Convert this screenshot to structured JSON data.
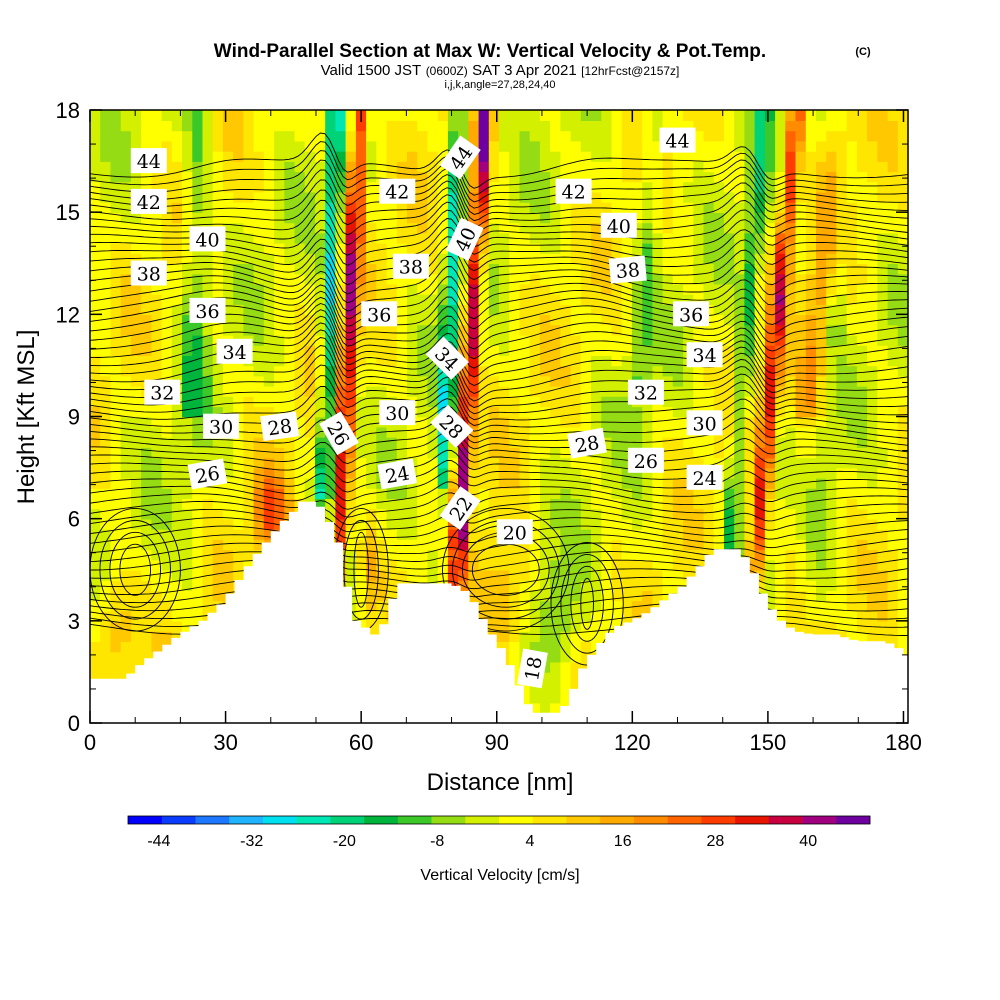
{
  "chart_data": {
    "type": "heatmap",
    "title": "Wind-Parallel Section at Max W: Vertical Velocity & Pot.Temp.",
    "title_mark": "(C)",
    "subtitle_parts": [
      "Valid 1500 JST",
      "(0600Z)",
      "SAT 3 Apr 2021",
      "[12hrFcst@2157z]"
    ],
    "subtitle3": "i,j,k,angle=27,28,24,40",
    "xlabel": "Distance [nm]",
    "ylabel": "Height [Kft MSL]",
    "xlim": [
      0,
      181
    ],
    "ylim": [
      0,
      18
    ],
    "xticks": [
      0,
      30,
      60,
      90,
      120,
      150,
      180
    ],
    "yticks": [
      0,
      3,
      6,
      9,
      12,
      15,
      18
    ],
    "colorbar": {
      "label": "Vertical Velocity [cm/s]",
      "range": [
        -48,
        48
      ],
      "ticks": [
        -44,
        -32,
        -20,
        -8,
        4,
        16,
        28,
        40
      ],
      "colors": [
        "#0000ff",
        "#0a3cff",
        "#1e78ff",
        "#20b4ff",
        "#00e0f0",
        "#00e6b4",
        "#00d278",
        "#00b43c",
        "#3cc828",
        "#96dc14",
        "#d2f000",
        "#ffff00",
        "#ffe600",
        "#ffc800",
        "#ffaa00",
        "#ff8c00",
        "#ff6400",
        "#ff3c00",
        "#e61400",
        "#c80040",
        "#a00080",
        "#6e00a0"
      ]
    },
    "terrain": [
      [
        0,
        1.3
      ],
      [
        8,
        1.3
      ],
      [
        10,
        1.6
      ],
      [
        13,
        1.9
      ],
      [
        16,
        2.2
      ],
      [
        20,
        2.6
      ],
      [
        25,
        3.0
      ],
      [
        30,
        3.6
      ],
      [
        33,
        4.2
      ],
      [
        36,
        4.8
      ],
      [
        39,
        5.3
      ],
      [
        42,
        5.8
      ],
      [
        45,
        6.2
      ],
      [
        47,
        6.5
      ],
      [
        50,
        6.5
      ],
      [
        52,
        6.2
      ],
      [
        55,
        5.3
      ],
      [
        57,
        4.0
      ],
      [
        58,
        3.0
      ],
      [
        60,
        3.0
      ],
      [
        62,
        2.6
      ],
      [
        64,
        2.6
      ],
      [
        66,
        3.2
      ],
      [
        68,
        4.1
      ],
      [
        70,
        4.1
      ],
      [
        76,
        4.1
      ],
      [
        80,
        4.1
      ],
      [
        84,
        3.8
      ],
      [
        88,
        2.8
      ],
      [
        92,
        2.0
      ],
      [
        96,
        0.8
      ],
      [
        98,
        0.3
      ],
      [
        103,
        0.3
      ],
      [
        106,
        0.6
      ],
      [
        108,
        1.4
      ],
      [
        112,
        2.2
      ],
      [
        116,
        2.8
      ],
      [
        120,
        3.0
      ],
      [
        124,
        3.3
      ],
      [
        127,
        3.6
      ],
      [
        131,
        4.0
      ],
      [
        135,
        4.6
      ],
      [
        138,
        5.1
      ],
      [
        141,
        5.1
      ],
      [
        144,
        5.1
      ],
      [
        147,
        4.4
      ],
      [
        150,
        3.5
      ],
      [
        153,
        3.0
      ],
      [
        156,
        2.7
      ],
      [
        160,
        2.6
      ],
      [
        165,
        2.6
      ],
      [
        170,
        2.4
      ],
      [
        175,
        2.4
      ],
      [
        178,
        2.3
      ],
      [
        181,
        2.0
      ]
    ],
    "theta_contour_labels": [
      {
        "value": "44",
        "x": 13,
        "y": 16.5,
        "angle": 0
      },
      {
        "value": "42",
        "x": 13,
        "y": 15.3,
        "angle": 0
      },
      {
        "value": "40",
        "x": 26,
        "y": 14.2,
        "angle": 0
      },
      {
        "value": "38",
        "x": 13,
        "y": 13.2,
        "angle": 0
      },
      {
        "value": "36",
        "x": 26,
        "y": 12.1,
        "angle": 0
      },
      {
        "value": "34",
        "x": 32,
        "y": 10.9,
        "angle": 0
      },
      {
        "value": "32",
        "x": 16,
        "y": 9.7,
        "angle": 0
      },
      {
        "value": "30",
        "x": 29,
        "y": 8.7,
        "angle": 0
      },
      {
        "value": "28",
        "x": 42,
        "y": 8.7,
        "angle": -8
      },
      {
        "value": "26",
        "x": 26,
        "y": 7.3,
        "angle": -10
      },
      {
        "value": "42",
        "x": 68,
        "y": 15.6,
        "angle": 0
      },
      {
        "value": "38",
        "x": 71,
        "y": 13.4,
        "angle": 0
      },
      {
        "value": "36",
        "x": 64,
        "y": 12.0,
        "angle": 0
      },
      {
        "value": "30",
        "x": 68,
        "y": 9.1,
        "angle": 0
      },
      {
        "value": "26",
        "x": 55,
        "y": 8.5,
        "angle": 60
      },
      {
        "value": "24",
        "x": 68,
        "y": 7.3,
        "angle": -10
      },
      {
        "value": "44",
        "x": 82,
        "y": 16.6,
        "angle": -55
      },
      {
        "value": "40",
        "x": 83,
        "y": 14.2,
        "angle": -65
      },
      {
        "value": "34",
        "x": 79,
        "y": 10.7,
        "angle": 45
      },
      {
        "value": "28",
        "x": 80,
        "y": 8.7,
        "angle": 45
      },
      {
        "value": "22",
        "x": 82,
        "y": 6.3,
        "angle": -55
      },
      {
        "value": "20",
        "x": 94,
        "y": 5.6,
        "angle": 0
      },
      {
        "value": "18",
        "x": 98,
        "y": 1.6,
        "angle": -80
      },
      {
        "value": "42",
        "x": 107,
        "y": 15.6,
        "angle": 0
      },
      {
        "value": "40",
        "x": 117,
        "y": 14.6,
        "angle": 0
      },
      {
        "value": "38",
        "x": 119,
        "y": 13.3,
        "angle": -5
      },
      {
        "value": "44",
        "x": 130,
        "y": 17.1,
        "angle": 0
      },
      {
        "value": "36",
        "x": 133,
        "y": 12.0,
        "angle": 0
      },
      {
        "value": "34",
        "x": 136,
        "y": 10.8,
        "angle": 0
      },
      {
        "value": "32",
        "x": 123,
        "y": 9.7,
        "angle": 0
      },
      {
        "value": "30",
        "x": 136,
        "y": 8.8,
        "angle": 0
      },
      {
        "value": "28",
        "x": 110,
        "y": 8.2,
        "angle": -10
      },
      {
        "value": "26",
        "x": 123,
        "y": 7.7,
        "angle": 0
      },
      {
        "value": "24",
        "x": 136,
        "y": 7.2,
        "angle": 0
      }
    ]
  }
}
